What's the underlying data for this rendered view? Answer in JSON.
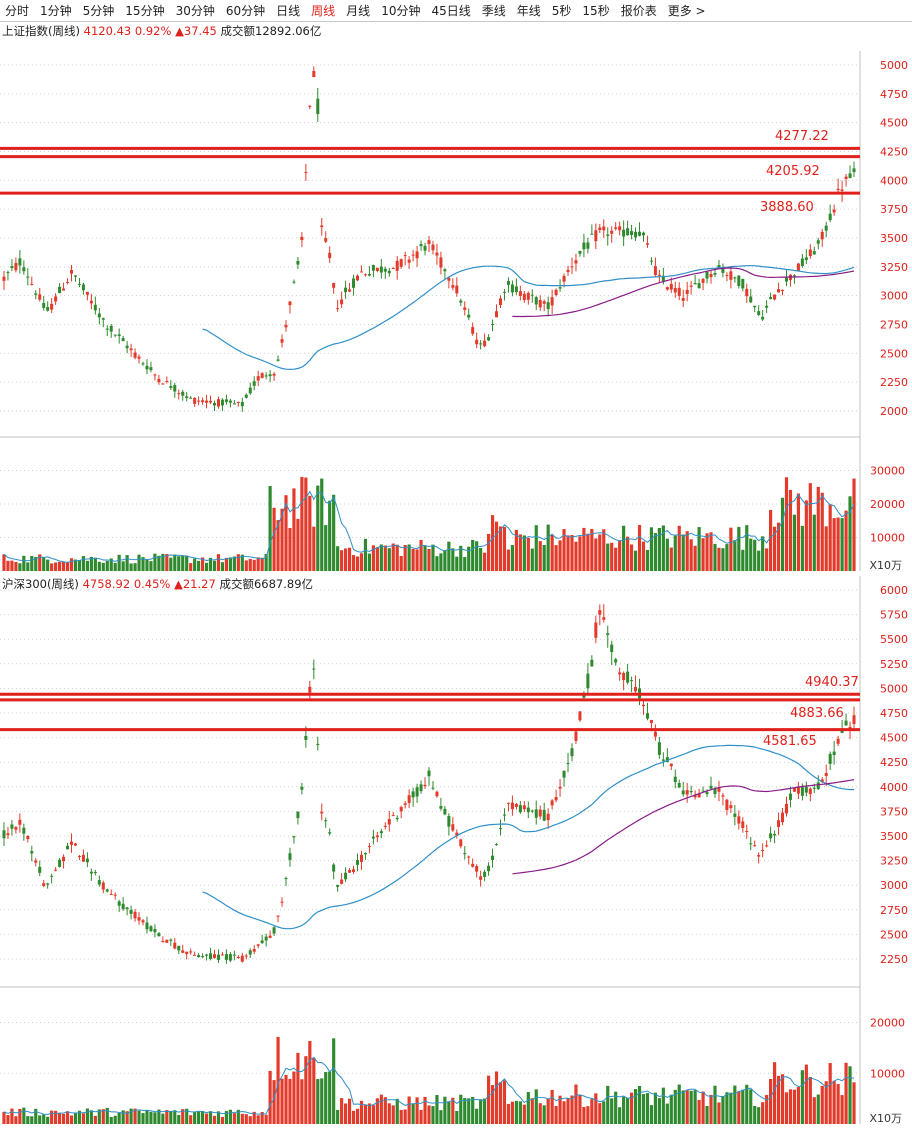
{
  "tabs": [
    "分时",
    "1分钟",
    "5分钟",
    "15分钟",
    "30分钟",
    "60分钟",
    "日线",
    "周线",
    "月线",
    "10分钟",
    "45日线",
    "季线",
    "年线",
    "5秒",
    "15秒",
    "报价表",
    "更多 >"
  ],
  "active_tab": 7,
  "colors": {
    "up": "#e33b2b",
    "down": "#2f8a2f",
    "ma_blue": "#2e90c8",
    "ma_purple": "#8a1c8a",
    "level": "#e0201b",
    "grid": "#d0d0d0"
  },
  "panel1": {
    "name": "上证指数(周线)",
    "price": "4120.43",
    "change_pct": "0.92%",
    "change": "▲37.45",
    "turnover": "成交额12892.06亿",
    "yticks": [
      "5000",
      "4750",
      "4500",
      "4250",
      "4000",
      "3750",
      "3500",
      "3250",
      "3000",
      "2750",
      "2500",
      "2250",
      "2000"
    ],
    "levels": [
      {
        "value": "4277.22"
      },
      {
        "value": "4205.92"
      },
      {
        "value": "3888.60"
      }
    ],
    "vol_ticks": [
      "30000",
      "20000",
      "10000"
    ],
    "vol_unit": "X10万"
  },
  "panel2": {
    "name": "沪深300(周线)",
    "price": "4758.92",
    "change_pct": "0.45%",
    "change": "▲21.27",
    "turnover": "成交额6687.89亿",
    "yticks": [
      "6000",
      "5750",
      "5500",
      "5250",
      "5000",
      "4750",
      "4500",
      "4250",
      "4000",
      "3750",
      "3500",
      "3250",
      "3000",
      "2750",
      "2500",
      "2250"
    ],
    "levels": [
      {
        "value": "4940.37"
      },
      {
        "value": "4883.66"
      },
      {
        "value": "4581.65"
      }
    ],
    "vol_ticks": [
      "20000",
      "10000"
    ],
    "vol_unit": "X10万"
  },
  "chart_data": [
    {
      "type": "candlestick",
      "title": "上证指数(周线)",
      "ylim": [
        1850,
        5200
      ],
      "key_points": [
        {
          "x": "start",
          "y": 3250
        },
        {
          "x": "low",
          "y": 1950
        },
        {
          "x": "peak",
          "y": 5150
        },
        {
          "x": "mid",
          "y": 3400
        },
        {
          "x": "late",
          "y": 2700
        },
        {
          "x": "last",
          "y": 4120.43
        }
      ],
      "horizontal_levels": [
        4277.22,
        4205.92,
        3888.6
      ]
    },
    {
      "type": "bar",
      "title": "成交额",
      "ylim": [
        0,
        40000
      ]
    },
    {
      "type": "candlestick",
      "title": "沪深300(周线)",
      "ylim": [
        2100,
        6100
      ],
      "key_points": [
        {
          "x": "start",
          "y": 3700
        },
        {
          "x": "low",
          "y": 2200
        },
        {
          "x": "peak",
          "y": 5380
        },
        {
          "x": "high2",
          "y": 5930
        },
        {
          "x": "late",
          "y": 3150
        },
        {
          "x": "last",
          "y": 4758.92
        }
      ],
      "horizontal_levels": [
        4940.37,
        4883.66,
        4581.65
      ]
    },
    {
      "type": "bar",
      "title": "成交额",
      "ylim": [
        0,
        27000
      ]
    }
  ]
}
